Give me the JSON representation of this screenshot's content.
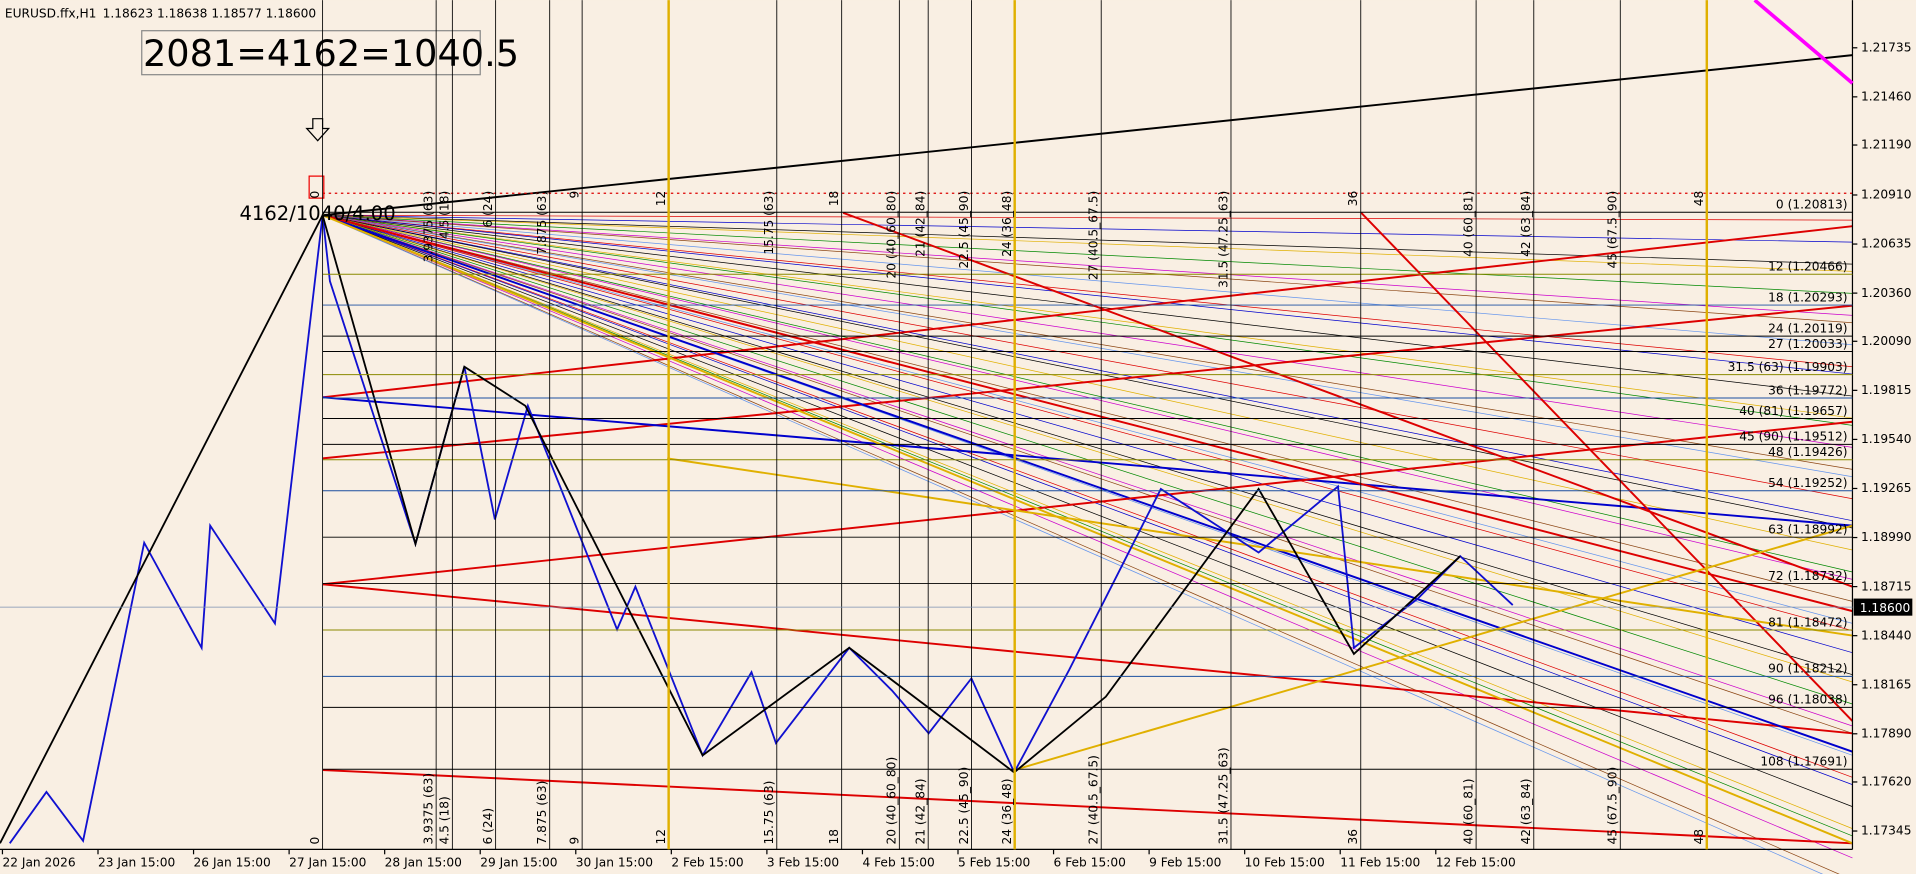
{
  "header": {
    "symbol": "EURUSD.ffx,H1",
    "ohlc": "1.18623 1.18638 1.18577 1.18600"
  },
  "formula": "2081=4162=1040.5",
  "pivot_label": "4162/1040/4.00",
  "price_axis": {
    "ylim": [
      1.17242,
      1.22002
    ],
    "ticks": [
      1.21735,
      {
        "value": 1.2146,
        "label": "1.21460"
      },
      {
        "value": 1.2119,
        "label": "1.21190"
      },
      {
        "value": 1.2091,
        "label": "1.20910"
      },
      1.20635,
      {
        "value": 1.2036,
        "label": "1.20360"
      },
      {
        "value": 1.2009,
        "label": "1.20090"
      },
      1.19815,
      {
        "value": 1.1954,
        "label": "1.19540"
      },
      1.19265,
      {
        "value": 1.1899,
        "label": "1.18990"
      },
      1.18715,
      {
        "value": 1.1844,
        "label": "1.18440"
      },
      1.18165,
      {
        "value": 1.1789,
        "label": "1.17890"
      },
      {
        "value": 1.1762,
        "label": "1.17620"
      },
      1.17345
    ],
    "current": {
      "value": 1.186,
      "label": "1.18600"
    }
  },
  "levels": [
    {
      "label": "0 (1.20813)",
      "price": 1.20813
    },
    {
      "label": "12 (1.20466)",
      "price": 1.20466
    },
    {
      "label": "18 (1.20293)",
      "price": 1.20293
    },
    {
      "label": "24 (1.20119)",
      "price": 1.20119
    },
    {
      "label": "27 (1.20033)",
      "price": 1.20033
    },
    {
      "label": "31.5 (63) (1.19903)",
      "price": 1.19903
    },
    {
      "label": "36 (1.19772)",
      "price": 1.19772
    },
    {
      "label": "40 (81) (1.19657)",
      "price": 1.19657
    },
    {
      "label": "45 (90) (1.19512)",
      "price": 1.19512
    },
    {
      "label": "48 (1.19426)",
      "price": 1.19426
    },
    {
      "label": "54 (1.19252)",
      "price": 1.19252
    },
    {
      "label": "63 (1.18992)",
      "price": 1.18992
    },
    {
      "label": "72 (1.18732)",
      "price": 1.18732
    },
    {
      "label": "81 (1.18472)",
      "price": 1.18472
    },
    {
      "label": "90 (1.18212)",
      "price": 1.18212
    },
    {
      "label": "96 (1.18038)",
      "price": 1.18038
    },
    {
      "label": "108 (1.17691)",
      "price": 1.17691
    }
  ],
  "time_cycles": [
    0,
    {
      "value": 3.9375,
      "label": "3.9375 (63)"
    },
    {
      "value": 4.5,
      "label": "4.5 (18)"
    },
    {
      "value": 6,
      "label": "6 (24)"
    },
    {
      "value": 7.875,
      "label": "7.875 (63)"
    },
    9,
    12,
    {
      "value": 15.75,
      "label": "15.75 (63)"
    },
    18,
    {
      "value": 20,
      "label": "20 (40_60_80)"
    },
    {
      "value": 21,
      "label": "21 (42_84)"
    },
    {
      "value": 22.5,
      "label": "22.5 (45_90)"
    },
    {
      "value": 24,
      "label": "24 (36_48)"
    },
    {
      "value": 27,
      "label": "27 (40.5_67.5)"
    },
    {
      "value": 31.5,
      "label": "31.5 (47.25_63)"
    },
    36,
    {
      "value": 40,
      "label": "40 (60_81)"
    },
    {
      "value": 42,
      "label": "42 (63_84)"
    },
    {
      "value": 45,
      "label": "45 (67.5_90)"
    },
    48
  ],
  "time_axis": {
    "labels": [
      "22 Jan 2026",
      "23 Jan 15:00",
      "26 Jan 15:00",
      "27 Jan 15:00",
      "28 Jan 15:00",
      "29 Jan 15:00",
      "30 Jan 15:00",
      "2 Feb 15:00",
      "3 Feb 15:00",
      "4 Feb 15:00",
      "5 Feb 15:00",
      "6 Feb 15:00",
      "9 Feb 15:00",
      "10 Feb 15:00",
      "11 Feb 15:00",
      "12 Feb 15:00"
    ]
  }
}
